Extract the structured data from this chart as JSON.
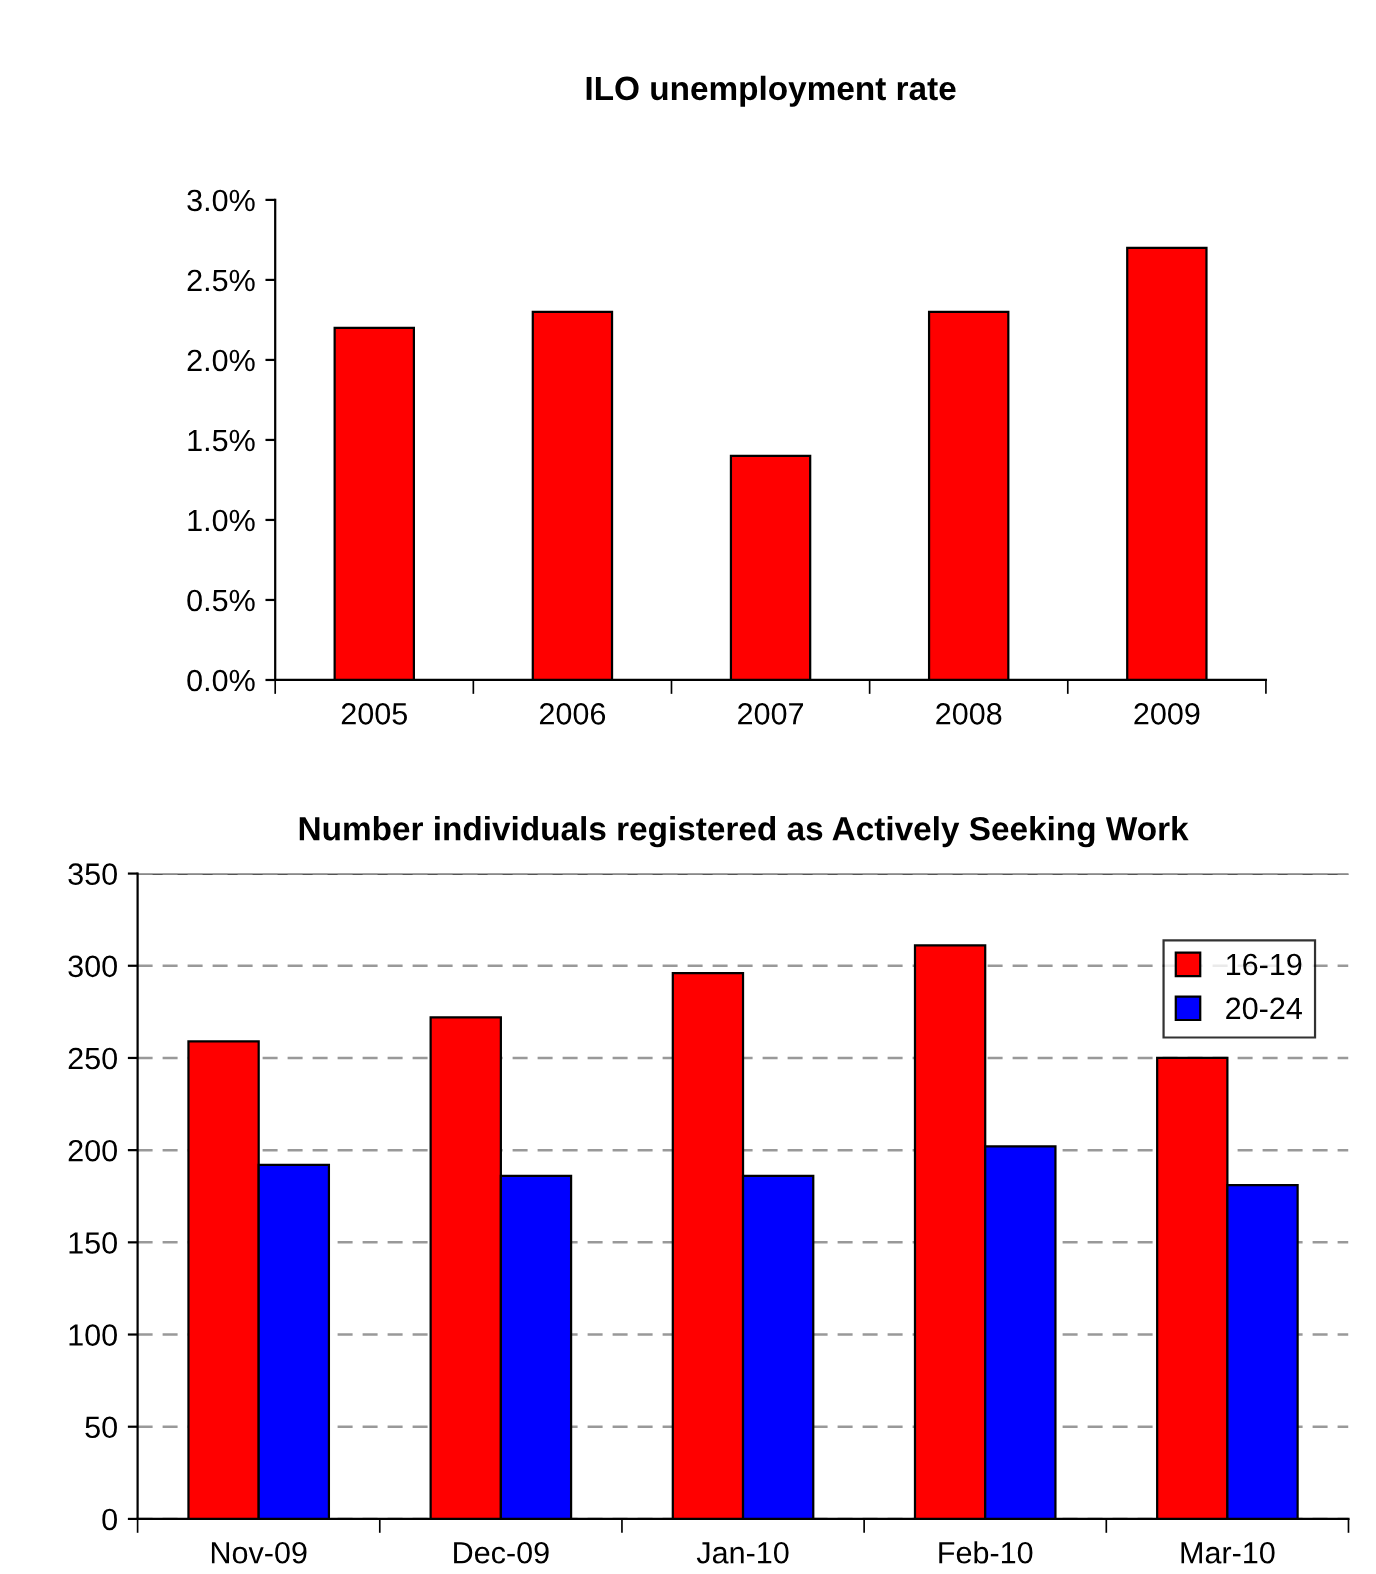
{
  "chart_data": [
    {
      "type": "bar",
      "title": "ILO unemployment rate",
      "categories": [
        "2005",
        "2006",
        "2007",
        "2008",
        "2009"
      ],
      "series": [
        {
          "color": "#ff0000",
          "values": [
            2.2,
            2.3,
            1.4,
            2.3,
            2.7
          ]
        }
      ],
      "ylim": [
        0,
        3.0
      ],
      "yticks": [
        {
          "value": 0,
          "label": "0.0%"
        },
        {
          "value": 0.5,
          "label": "0.5%"
        },
        {
          "value": 1.0,
          "label": "1.0%"
        },
        {
          "value": 1.5,
          "label": "1.5%"
        },
        {
          "value": 2.0,
          "label": "2.0%"
        },
        {
          "value": 2.5,
          "label": "2.5%"
        },
        {
          "value": 3.0,
          "label": "3.0%"
        }
      ],
      "grid": false,
      "legend": false
    },
    {
      "type": "bar",
      "title": "Number individuals registered as Actively Seeking Work",
      "categories": [
        "Nov-09",
        "Dec-09",
        "Jan-10",
        "Feb-10",
        "Mar-10"
      ],
      "series": [
        {
          "name": "16-19",
          "color": "#ff0000",
          "values": [
            259,
            272,
            296,
            311,
            250
          ]
        },
        {
          "name": "20-24",
          "color": "#0000ff",
          "values": [
            192,
            186,
            186,
            202,
            181
          ]
        }
      ],
      "ylim": [
        0,
        350
      ],
      "yticks": [
        0,
        50,
        100,
        150,
        200,
        250,
        300,
        350
      ],
      "grid": "y",
      "legend": "top right"
    }
  ]
}
